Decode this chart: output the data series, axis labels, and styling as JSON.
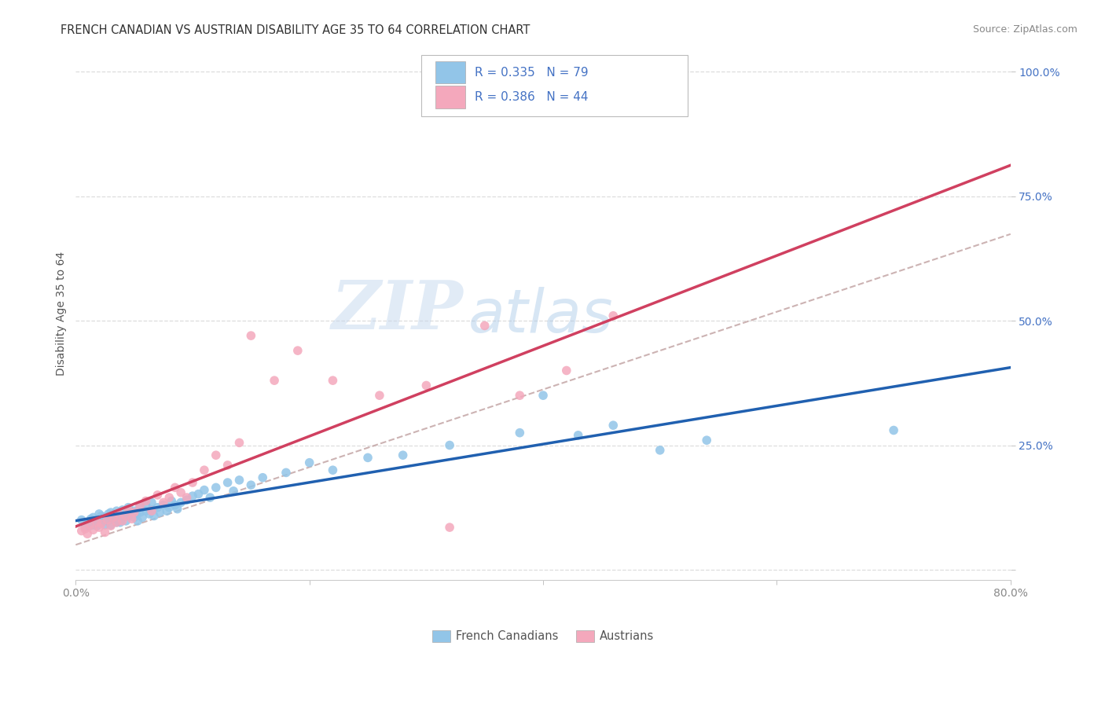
{
  "title": "FRENCH CANADIAN VS AUSTRIAN DISABILITY AGE 35 TO 64 CORRELATION CHART",
  "source": "Source: ZipAtlas.com",
  "ylabel": "Disability Age 35 to 64",
  "xlim": [
    0.0,
    0.8
  ],
  "ylim": [
    -0.02,
    1.05
  ],
  "french_color": "#92C5E8",
  "austrian_color": "#F4A8BC",
  "french_line_color": "#2060B0",
  "austrian_line_color": "#D04060",
  "dashed_line_color": "#C0A0A0",
  "R_french": 0.335,
  "N_french": 79,
  "R_austrian": 0.386,
  "N_austrian": 44,
  "watermark_zip": "ZIP",
  "watermark_atlas": "atlas",
  "background_color": "#FFFFFF",
  "grid_color": "#DDDDDD",
  "tick_color_blue": "#4472C4",
  "tick_color_gray": "#888888",
  "legend_text_color": "#4472C4",
  "french_scatter_x": [
    0.005,
    0.008,
    0.01,
    0.012,
    0.013,
    0.015,
    0.015,
    0.017,
    0.018,
    0.02,
    0.02,
    0.022,
    0.022,
    0.025,
    0.025,
    0.027,
    0.028,
    0.03,
    0.03,
    0.03,
    0.032,
    0.033,
    0.035,
    0.035,
    0.037,
    0.038,
    0.04,
    0.04,
    0.042,
    0.043,
    0.045,
    0.045,
    0.047,
    0.05,
    0.05,
    0.052,
    0.053,
    0.055,
    0.055,
    0.057,
    0.06,
    0.06,
    0.063,
    0.065,
    0.065,
    0.067,
    0.07,
    0.072,
    0.075,
    0.078,
    0.08,
    0.082,
    0.085,
    0.087,
    0.09,
    0.095,
    0.1,
    0.105,
    0.11,
    0.115,
    0.12,
    0.13,
    0.135,
    0.14,
    0.15,
    0.16,
    0.18,
    0.2,
    0.22,
    0.25,
    0.28,
    0.32,
    0.38,
    0.4,
    0.43,
    0.46,
    0.5,
    0.54,
    0.7
  ],
  "french_scatter_y": [
    0.1,
    0.085,
    0.095,
    0.088,
    0.102,
    0.09,
    0.105,
    0.095,
    0.088,
    0.1,
    0.112,
    0.095,
    0.108,
    0.09,
    0.105,
    0.098,
    0.112,
    0.09,
    0.105,
    0.115,
    0.1,
    0.108,
    0.095,
    0.118,
    0.102,
    0.095,
    0.105,
    0.12,
    0.11,
    0.098,
    0.108,
    0.125,
    0.115,
    0.105,
    0.118,
    0.112,
    0.098,
    0.115,
    0.128,
    0.105,
    0.118,
    0.13,
    0.112,
    0.12,
    0.135,
    0.108,
    0.125,
    0.115,
    0.13,
    0.118,
    0.125,
    0.138,
    0.13,
    0.122,
    0.135,
    0.14,
    0.148,
    0.152,
    0.16,
    0.145,
    0.165,
    0.175,
    0.158,
    0.18,
    0.17,
    0.185,
    0.195,
    0.215,
    0.2,
    0.225,
    0.23,
    0.25,
    0.275,
    0.35,
    0.27,
    0.29,
    0.24,
    0.26,
    0.28
  ],
  "austrian_scatter_x": [
    0.005,
    0.008,
    0.01,
    0.012,
    0.015,
    0.018,
    0.02,
    0.022,
    0.025,
    0.027,
    0.03,
    0.032,
    0.035,
    0.037,
    0.04,
    0.043,
    0.045,
    0.048,
    0.05,
    0.055,
    0.06,
    0.065,
    0.07,
    0.075,
    0.08,
    0.085,
    0.09,
    0.095,
    0.1,
    0.11,
    0.12,
    0.13,
    0.14,
    0.15,
    0.17,
    0.19,
    0.22,
    0.26,
    0.3,
    0.32,
    0.35,
    0.38,
    0.42,
    0.46
  ],
  "austrian_scatter_y": [
    0.078,
    0.082,
    0.072,
    0.09,
    0.08,
    0.095,
    0.085,
    0.092,
    0.075,
    0.1,
    0.088,
    0.105,
    0.095,
    0.112,
    0.098,
    0.108,
    0.12,
    0.102,
    0.115,
    0.128,
    0.138,
    0.118,
    0.15,
    0.135,
    0.145,
    0.165,
    0.155,
    0.145,
    0.175,
    0.2,
    0.23,
    0.21,
    0.255,
    0.47,
    0.38,
    0.44,
    0.38,
    0.35,
    0.37,
    0.085,
    0.49,
    0.35,
    0.4,
    0.51
  ]
}
